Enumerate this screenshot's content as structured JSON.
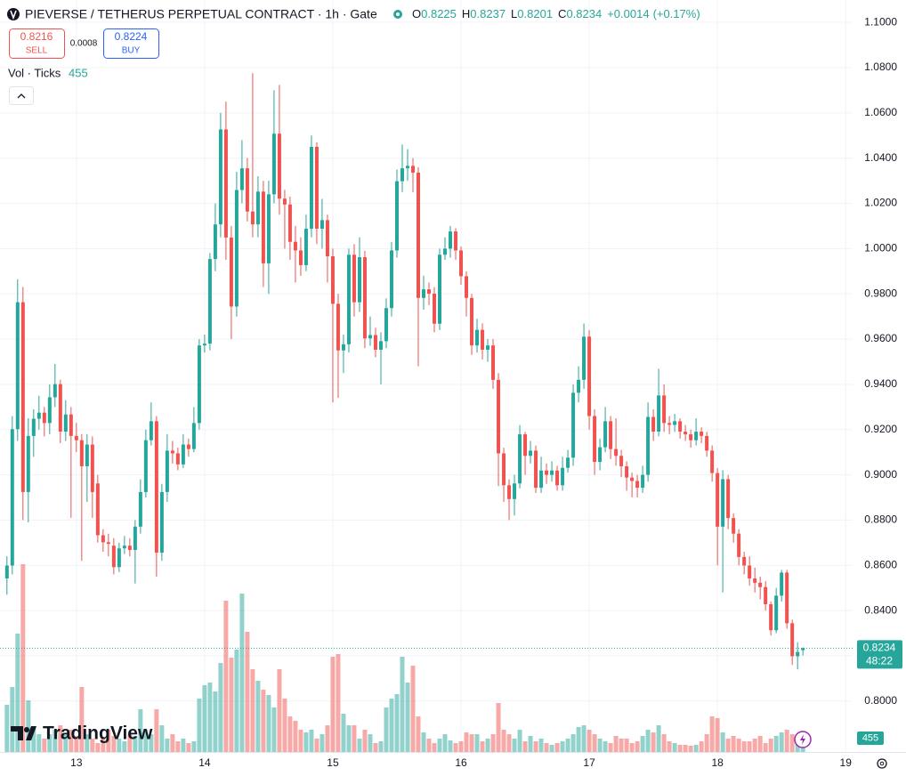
{
  "chart_data": {
    "type": "candlestick",
    "title": "PIEVERSE / TETHERUS PERPETUAL CONTRACT · 1h · Gate",
    "ohlc_keys": [
      "O",
      "H",
      "L",
      "C"
    ],
    "change": 0.0014,
    "change_label": "+0.0014",
    "change_pct": 0.17,
    "change_pct_label": "(+0.17%)",
    "sell_price": 0.8216,
    "sell_label": "SELL",
    "spread": 0.0008,
    "buy_price": 0.8224,
    "buy_label": "BUY",
    "volume_legend": "Vol · Ticks",
    "countdown": "48:22",
    "logo": "TradingView",
    "up_color": "#26a69a",
    "down_color": "#ef5350",
    "grid": true,
    "ylim": [
      0.7775,
      1.1099
    ],
    "yticks": [
      {
        "value": 0.8,
        "label": "0.8000"
      },
      {
        "value": 0.82,
        "label": "0.8200"
      },
      {
        "value": 0.84,
        "label": "0.8400"
      },
      {
        "value": 0.86,
        "label": "0.8600"
      },
      {
        "value": 0.88,
        "label": "0.8800"
      },
      {
        "value": 0.9,
        "label": "0.9000"
      },
      {
        "value": 0.92,
        "label": "0.9200"
      },
      {
        "value": 0.94,
        "label": "0.9400"
      },
      {
        "value": 0.96,
        "label": "0.9600"
      },
      {
        "value": 0.98,
        "label": "0.9800"
      },
      {
        "value": 1.0,
        "label": "1.0000"
      },
      {
        "value": 1.02,
        "label": "1.0200"
      },
      {
        "value": 1.04,
        "label": "1.0400"
      },
      {
        "value": 1.06,
        "label": "1.0600"
      },
      {
        "value": 1.08,
        "label": "1.0800"
      },
      {
        "value": 1.1,
        "label": "1.1000"
      }
    ],
    "xlim": [
      -1.3,
      158.3
    ],
    "xticks": [
      {
        "value": 13,
        "label": "13"
      },
      {
        "value": 37,
        "label": "14"
      },
      {
        "value": 61,
        "label": "15"
      },
      {
        "value": 85,
        "label": "16"
      },
      {
        "value": 109,
        "label": "17"
      },
      {
        "value": 133,
        "label": "18"
      },
      {
        "value": 157,
        "label": "19"
      }
    ],
    "ohlc": [
      [
        0.8542,
        0.864,
        0.847,
        0.8599
      ],
      [
        0.8599,
        0.926,
        0.856,
        0.9202
      ],
      [
        0.9202,
        0.9865,
        0.915,
        0.9763
      ],
      [
        0.9763,
        0.983,
        0.88,
        0.8924
      ],
      [
        0.8924,
        0.925,
        0.879,
        0.9172
      ],
      [
        0.9172,
        0.929,
        0.908,
        0.9248
      ],
      [
        0.9248,
        0.935,
        0.92,
        0.9275
      ],
      [
        0.9275,
        0.93,
        0.917,
        0.9229
      ],
      [
        0.9229,
        0.94,
        0.918,
        0.9343
      ],
      [
        0.9343,
        0.949,
        0.93,
        0.9401
      ],
      [
        0.9401,
        0.942,
        0.914,
        0.9191
      ],
      [
        0.9191,
        0.933,
        0.915,
        0.9267
      ],
      [
        0.9267,
        0.93,
        0.881,
        0.9172
      ],
      [
        0.9172,
        0.923,
        0.91,
        0.9153
      ],
      [
        0.9153,
        0.918,
        0.862,
        0.9038
      ],
      [
        0.9038,
        0.918,
        0.888,
        0.9134
      ],
      [
        0.9134,
        0.917,
        0.881,
        0.8924
      ],
      [
        0.8962,
        0.9,
        0.87,
        0.8733
      ],
      [
        0.8733,
        0.876,
        0.866,
        0.8702
      ],
      [
        0.8702,
        0.874,
        0.864,
        0.8695
      ],
      [
        0.8687,
        0.872,
        0.856,
        0.8592
      ],
      [
        0.8592,
        0.87,
        0.857,
        0.8675
      ],
      [
        0.8675,
        0.873,
        0.865,
        0.8687
      ],
      [
        0.8687,
        0.872,
        0.864,
        0.8668
      ],
      [
        0.8668,
        0.88,
        0.852,
        0.8771
      ],
      [
        0.8771,
        0.898,
        0.874,
        0.8924
      ],
      [
        0.8924,
        0.92,
        0.89,
        0.9153
      ],
      [
        0.9153,
        0.932,
        0.913,
        0.9237
      ],
      [
        0.9237,
        0.926,
        0.855,
        0.8656
      ],
      [
        0.8656,
        0.896,
        0.862,
        0.8924
      ],
      [
        0.8924,
        0.918,
        0.888,
        0.9107
      ],
      [
        0.9107,
        0.915,
        0.905,
        0.9095
      ],
      [
        0.9095,
        0.912,
        0.902,
        0.9046
      ],
      [
        0.9046,
        0.918,
        0.903,
        0.9134
      ],
      [
        0.9134,
        0.916,
        0.908,
        0.9114
      ],
      [
        0.9114,
        0.93,
        0.91,
        0.9229
      ],
      [
        0.9229,
        0.96,
        0.92,
        0.9572
      ],
      [
        0.9572,
        0.962,
        0.954,
        0.958
      ],
      [
        0.958,
        0.998,
        0.955,
        0.9954
      ],
      [
        0.9954,
        1.02,
        0.99,
        1.0107
      ],
      [
        1.0107,
        1.06,
        1.005,
        1.0527
      ],
      [
        1.0527,
        1.065,
        0.995,
        1.0049
      ],
      [
        1.0049,
        1.01,
        0.96,
        0.9744
      ],
      [
        0.9744,
        1.034,
        0.97,
        1.0259
      ],
      [
        1.0259,
        1.048,
        1.02,
        1.0355
      ],
      [
        1.0355,
        1.04,
        1.012,
        1.0164
      ],
      [
        1.0164,
        1.0776,
        1.005,
        1.0107
      ],
      [
        1.0107,
        1.032,
        1.005,
        1.0252
      ],
      [
        1.0252,
        1.03,
        0.983,
        0.9935
      ],
      [
        0.9935,
        1.03,
        0.98,
        1.024
      ],
      [
        1.024,
        1.07,
        1.02,
        1.0508
      ],
      [
        1.0508,
        1.0724,
        1.015,
        1.0221
      ],
      [
        1.0221,
        1.026,
        1.0,
        1.0195
      ],
      [
        1.0195,
        1.023,
        0.995,
        1.003
      ],
      [
        1.003,
        1.01,
        0.985,
        0.9992
      ],
      [
        0.9992,
        1.005,
        0.988,
        0.9927
      ],
      [
        0.9927,
        1.015,
        0.99,
        1.0088
      ],
      [
        1.0088,
        1.05,
        1.005,
        1.045
      ],
      [
        1.045,
        1.047,
        1.002,
        1.0088
      ],
      [
        1.0088,
        1.022,
        1.0,
        1.0126
      ],
      [
        1.0126,
        1.015,
        0.985,
        0.9966
      ],
      [
        0.9966,
        1.0,
        0.932,
        0.9756
      ],
      [
        0.9756,
        0.98,
        0.934,
        0.955
      ],
      [
        0.955,
        0.962,
        0.945,
        0.9577
      ],
      [
        0.9577,
        1.0,
        0.954,
        0.9973
      ],
      [
        0.9973,
        1.002,
        0.97,
        0.9763
      ],
      [
        0.9763,
        1.005,
        0.972,
        0.9962
      ],
      [
        0.9962,
        0.999,
        0.956,
        0.9603
      ],
      [
        0.9603,
        0.97,
        0.957,
        0.9618
      ],
      [
        0.9618,
        0.965,
        0.952,
        0.9553
      ],
      [
        0.9553,
        0.963,
        0.94,
        0.9591
      ],
      [
        0.9591,
        0.978,
        0.956,
        0.9737
      ],
      [
        0.9737,
        1.003,
        0.97,
        0.9992
      ],
      [
        0.9992,
        1.035,
        0.996,
        1.0298
      ],
      [
        1.0298,
        1.046,
        1.025,
        1.0355
      ],
      [
        1.0355,
        1.044,
        1.03,
        1.0366
      ],
      [
        1.0366,
        1.04,
        1.025,
        1.0336
      ],
      [
        1.0336,
        1.036,
        0.948,
        0.9782
      ],
      [
        0.9782,
        0.988,
        0.973,
        0.982
      ],
      [
        0.982,
        0.985,
        0.975,
        0.9801
      ],
      [
        0.9801,
        0.983,
        0.963,
        0.9668
      ],
      [
        0.9668,
        1.0,
        0.964,
        0.9973
      ],
      [
        0.9973,
        1.005,
        0.995,
        1.0
      ],
      [
        1.0,
        1.01,
        0.996,
        1.0076
      ],
      [
        1.0076,
        1.009,
        0.995,
        0.9992
      ],
      [
        0.9992,
        1.001,
        0.984,
        0.9878
      ],
      [
        0.9878,
        0.99,
        0.97,
        0.9782
      ],
      [
        0.9782,
        0.98,
        0.953,
        0.9572
      ],
      [
        0.9572,
        0.969,
        0.954,
        0.9641
      ],
      [
        0.9641,
        0.967,
        0.951,
        0.9553
      ],
      [
        0.9553,
        0.96,
        0.95,
        0.9572
      ],
      [
        0.9572,
        0.96,
        0.938,
        0.942
      ],
      [
        0.942,
        0.945,
        0.895,
        0.9095
      ],
      [
        0.9095,
        0.912,
        0.888,
        0.8954
      ],
      [
        0.8954,
        0.898,
        0.88,
        0.8893
      ],
      [
        0.8893,
        0.9,
        0.882,
        0.8962
      ],
      [
        0.8962,
        0.922,
        0.894,
        0.9179
      ],
      [
        0.9179,
        0.919,
        0.9,
        0.9084
      ],
      [
        0.9084,
        0.915,
        0.905,
        0.9107
      ],
      [
        0.9107,
        0.913,
        0.892,
        0.8943
      ],
      [
        0.8943,
        0.908,
        0.892,
        0.9019
      ],
      [
        0.9019,
        0.905,
        0.896,
        0.9
      ],
      [
        0.9,
        0.906,
        0.897,
        0.9019
      ],
      [
        0.9019,
        0.904,
        0.893,
        0.8954
      ],
      [
        0.8954,
        0.908,
        0.893,
        0.9031
      ],
      [
        0.9031,
        0.911,
        0.901,
        0.9076
      ],
      [
        0.9076,
        0.94,
        0.904,
        0.9363
      ],
      [
        0.9363,
        0.948,
        0.932,
        0.942
      ],
      [
        0.942,
        0.9669,
        0.938,
        0.9611
      ],
      [
        0.9611,
        0.964,
        0.92,
        0.926
      ],
      [
        0.926,
        0.929,
        0.9,
        0.9057
      ],
      [
        0.9057,
        0.916,
        0.902,
        0.9122
      ],
      [
        0.9122,
        0.93,
        0.91,
        0.9237
      ],
      [
        0.9237,
        0.926,
        0.907,
        0.9114
      ],
      [
        0.9114,
        0.925,
        0.904,
        0.9084
      ],
      [
        0.9084,
        0.911,
        0.899,
        0.9038
      ],
      [
        0.9038,
        0.906,
        0.893,
        0.8988
      ],
      [
        0.8988,
        0.901,
        0.89,
        0.8973
      ],
      [
        0.8973,
        0.9,
        0.89,
        0.8943
      ],
      [
        0.8943,
        0.904,
        0.892,
        0.9
      ],
      [
        0.9,
        0.932,
        0.897,
        0.9256
      ],
      [
        0.9256,
        0.929,
        0.915,
        0.9191
      ],
      [
        0.9191,
        0.9469,
        0.917,
        0.9351
      ],
      [
        0.9351,
        0.94,
        0.919,
        0.9229
      ],
      [
        0.9229,
        0.926,
        0.918,
        0.9221
      ],
      [
        0.9221,
        0.927,
        0.919,
        0.9237
      ],
      [
        0.9237,
        0.925,
        0.916,
        0.9191
      ],
      [
        0.9191,
        0.922,
        0.915,
        0.9179
      ],
      [
        0.9179,
        0.92,
        0.912,
        0.9153
      ],
      [
        0.9153,
        0.925,
        0.913,
        0.9191
      ],
      [
        0.9191,
        0.921,
        0.914,
        0.9172
      ],
      [
        0.9172,
        0.919,
        0.908,
        0.9107
      ],
      [
        0.9107,
        0.913,
        0.897,
        0.9008
      ],
      [
        0.9008,
        0.903,
        0.86,
        0.8771
      ],
      [
        0.8771,
        0.902,
        0.848,
        0.8981
      ],
      [
        0.8981,
        0.9,
        0.876,
        0.8809
      ],
      [
        0.8809,
        0.883,
        0.87,
        0.874
      ],
      [
        0.874,
        0.876,
        0.86,
        0.8637
      ],
      [
        0.8637,
        0.866,
        0.856,
        0.8599
      ],
      [
        0.8599,
        0.864,
        0.851,
        0.8542
      ],
      [
        0.8542,
        0.859,
        0.848,
        0.8523
      ],
      [
        0.8523,
        0.855,
        0.845,
        0.8504
      ],
      [
        0.8504,
        0.853,
        0.84,
        0.8428
      ],
      [
        0.8428,
        0.844,
        0.829,
        0.8313
      ],
      [
        0.8313,
        0.85,
        0.83,
        0.8466
      ],
      [
        0.8466,
        0.858,
        0.844,
        0.8568
      ],
      [
        0.8568,
        0.858,
        0.832,
        0.8344
      ],
      [
        0.8344,
        0.836,
        0.816,
        0.8198
      ],
      [
        0.8198,
        0.826,
        0.814,
        0.8217
      ],
      [
        0.8225,
        0.8237,
        0.8201,
        0.8234
      ]
    ],
    "volume": [
      1150,
      1584,
      2886,
      4579,
      1259,
      608,
      434,
      326,
      434,
      543,
      651,
      434,
      543,
      391,
      1584,
      434,
      326,
      217,
      326,
      543,
      391,
      326,
      260,
      434,
      391,
      1042,
      543,
      434,
      1042,
      651,
      326,
      434,
      260,
      326,
      217,
      260,
      1302,
      1628,
      1693,
      1476,
      2170,
      3689,
      2300,
      2496,
      3863,
      2930,
      2018,
      1736,
      1519,
      1389,
      1085,
      2018,
      1302,
      868,
      760,
      543,
      477,
      543,
      326,
      434,
      651,
      2322,
      2387,
      933,
      651,
      651,
      326,
      543,
      434,
      217,
      260,
      1085,
      1302,
      1411,
      2322,
      1693,
      2105,
      868,
      477,
      326,
      217,
      326,
      434,
      282,
      217,
      260,
      477,
      434,
      434,
      260,
      326,
      434,
      1194,
      543,
      434,
      326,
      543,
      260,
      391,
      260,
      326,
      217,
      174,
      217,
      260,
      326,
      434,
      608,
      651,
      543,
      434,
      326,
      260,
      217,
      391,
      326,
      326,
      217,
      260,
      391,
      543,
      477,
      651,
      434,
      260,
      217,
      174,
      174,
      152,
      174,
      260,
      434,
      868,
      825,
      477,
      326,
      391,
      326,
      260,
      260,
      326,
      391,
      217,
      326,
      391,
      477,
      543,
      434,
      391,
      455
    ]
  }
}
